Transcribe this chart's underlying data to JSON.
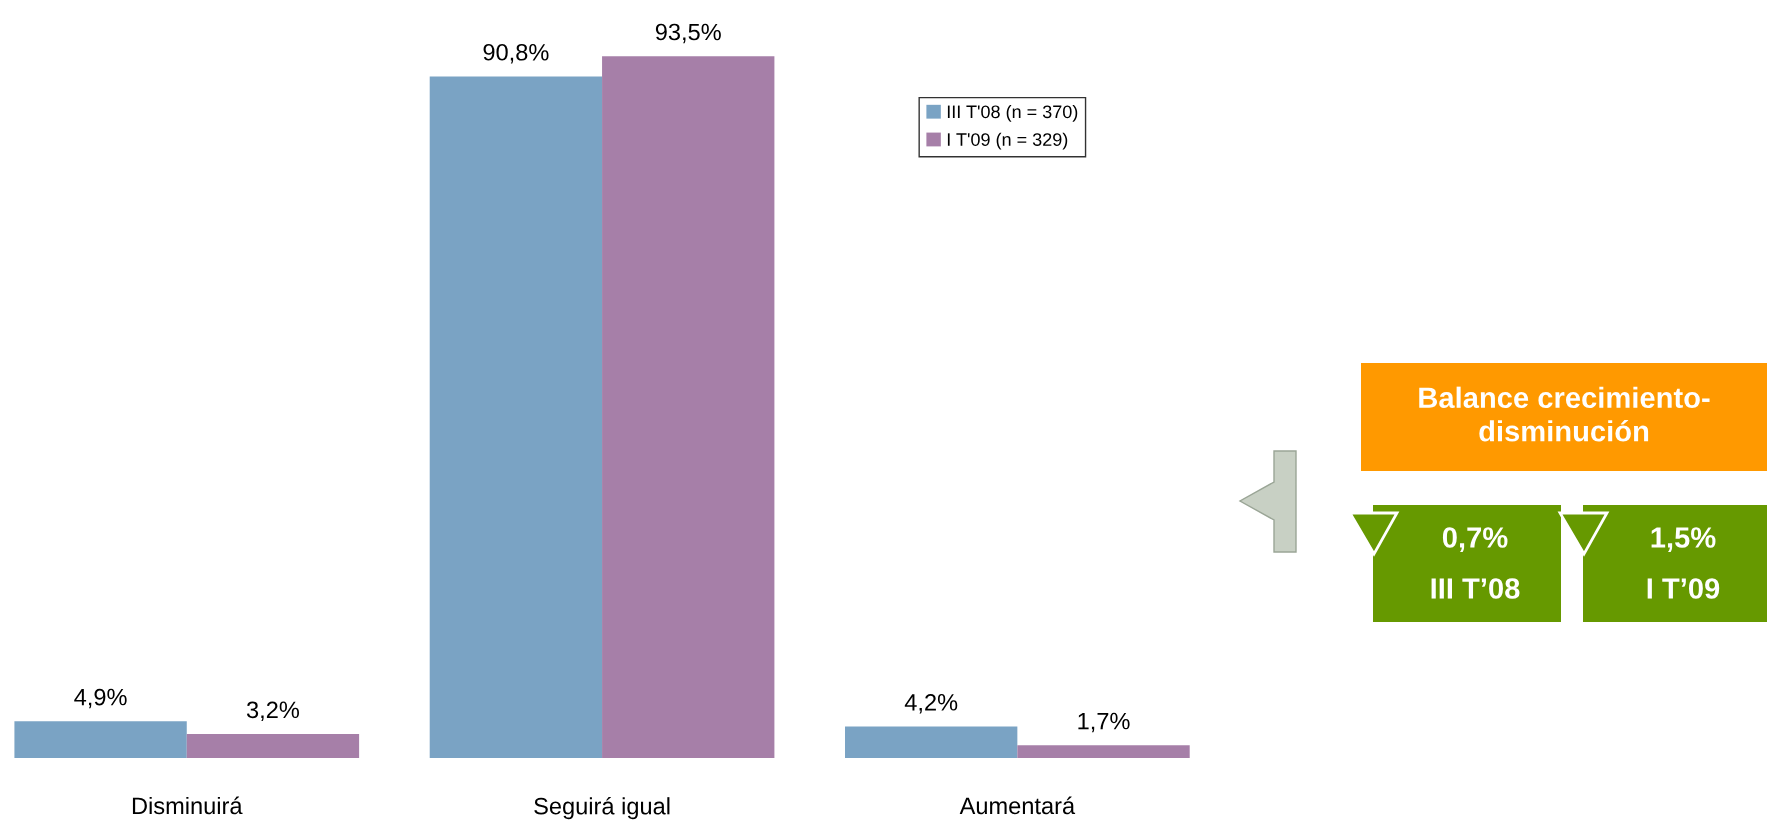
{
  "chart_data": [
    {
      "type": "bar",
      "categories": [
        "Disminuirá",
        "Seguirá igual",
        "Aumentará"
      ],
      "series": [
        {
          "name": "III T'08 (n = 370)",
          "color": "#7aa3c4",
          "values": [
            4.9,
            90.8,
            4.2
          ],
          "value_labels": [
            "4,9%",
            "90,8%",
            "4,2%"
          ]
        },
        {
          "name": "I T'09 (n = 329)",
          "color": "#a67fa8",
          "values": [
            3.2,
            93.5,
            1.7
          ],
          "value_labels": [
            "3,2%",
            "93,5%",
            "1,7%"
          ]
        }
      ],
      "legend": "right",
      "grid": false,
      "tick_labels": "x"
    },
    {
      "type": "other",
      "title": "Balance crecimiento-disminución",
      "annotations": [
        "0,7%",
        "III T’08",
        "1,5%",
        "I T’09"
      ]
    }
  ]
}
